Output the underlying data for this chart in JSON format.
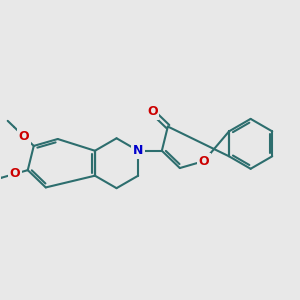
{
  "background_color": "#e8e8e8",
  "bond_color": "#2d6e6e",
  "bond_width": 1.5,
  "dbo": 0.055,
  "atom_colors": {
    "O": "#cc0000",
    "N": "#0000cc"
  },
  "font_size_atom": 9,
  "fig_size": [
    3.0,
    3.0
  ],
  "dpi": 100
}
